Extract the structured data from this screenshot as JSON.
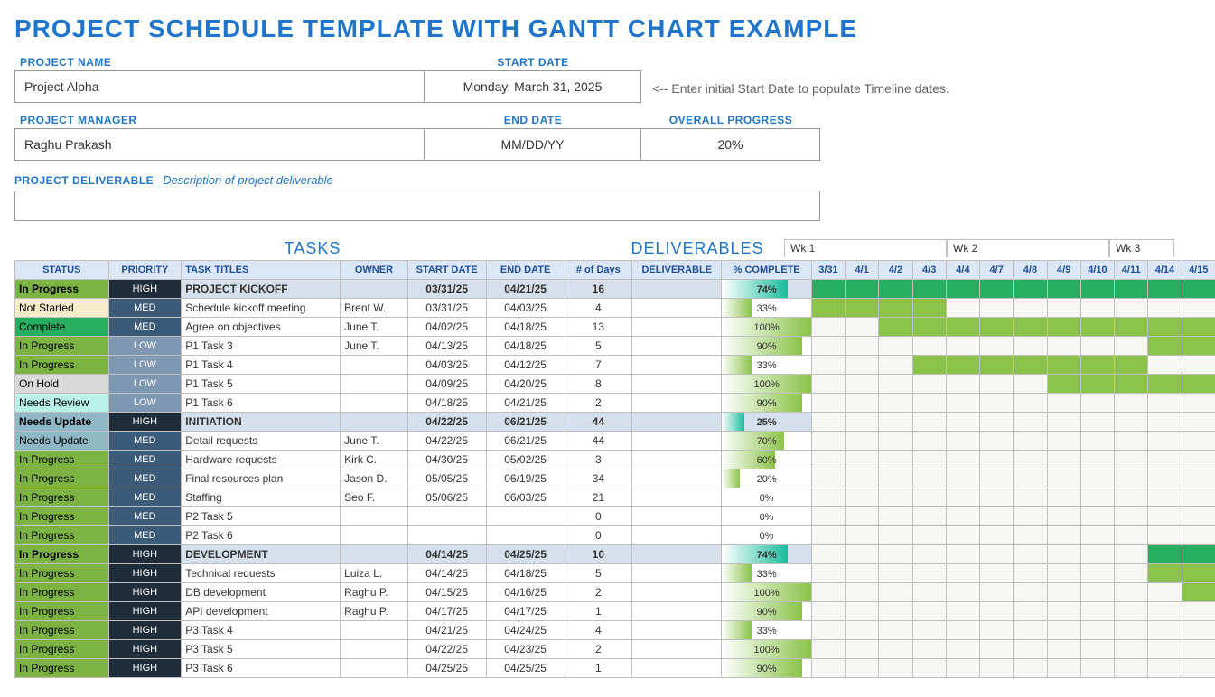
{
  "title": "PROJECT SCHEDULE TEMPLATE WITH GANTT CHART EXAMPLE",
  "labels": {
    "project_name": "PROJECT NAME",
    "start_date": "START DATE",
    "project_manager": "PROJECT MANAGER",
    "end_date": "END DATE",
    "overall_progress": "OVERALL PROGRESS",
    "deliverable": "PROJECT DELIVERABLE",
    "deliverable_desc": "Description of project deliverable",
    "hint": "<-- Enter initial Start Date to populate Timeline dates."
  },
  "header": {
    "project_name": "Project Alpha",
    "start_date": "Monday, March 31, 2025",
    "project_manager": "Raghu Prakash",
    "end_date": "MM/DD/YY",
    "overall_progress": "20%"
  },
  "sections": {
    "tasks": "TASKS",
    "deliverables": "DELIVERABLES"
  },
  "columns": {
    "status": "STATUS",
    "priority": "PRIORITY",
    "task": "TASK TITLES",
    "owner": "OWNER",
    "start": "START DATE",
    "end": "END DATE",
    "days": "# of Days",
    "deliverable": "DELIVERABLE",
    "pct": "% COMPLETE"
  },
  "weeks": [
    "Wk 1",
    "Wk 2",
    "Wk 3"
  ],
  "dates": [
    "3/31",
    "4/1",
    "4/2",
    "4/3",
    "4/4",
    "4/7",
    "4/8",
    "4/9",
    "4/10",
    "4/11",
    "4/14",
    "4/15"
  ],
  "colors": {
    "status": {
      "In Progress": "#7cb342",
      "Not Started": "#f5ecc9",
      "Complete": "#27ae60",
      "On Hold": "#d9d9d9",
      "Needs Review": "#b9f2e9",
      "Needs Update": "#8fb7c6"
    },
    "priority": {
      "HIGH": "#1f2d3a",
      "MED": "#3b5b78",
      "LOW": "#7e97b3"
    },
    "gantt_task": "#8bc34a",
    "gantt_phase": "#27ae60",
    "pct_task_from": "#ffffff",
    "pct_task_to": "#8bc34a",
    "pct_phase_from": "#ffffff",
    "pct_phase_to": "#1abc9c"
  },
  "rows": [
    {
      "phase": true,
      "status": "In Progress",
      "priority": "HIGH",
      "title": "PROJECT KICKOFF",
      "owner": "",
      "start": "03/31/25",
      "end": "04/21/25",
      "days": "16",
      "deliv": "",
      "pct": 74,
      "bar": [
        0,
        12
      ]
    },
    {
      "status": "Not Started",
      "priority": "MED",
      "title": "Schedule kickoff meeting",
      "owner": "Brent W.",
      "start": "03/31/25",
      "end": "04/03/25",
      "days": "4",
      "deliv": "",
      "pct": 33,
      "bar": [
        0,
        4
      ]
    },
    {
      "status": "Complete",
      "priority": "MED",
      "title": "Agree on objectives",
      "owner": "June T.",
      "start": "04/02/25",
      "end": "04/18/25",
      "days": "13",
      "deliv": "",
      "pct": 100,
      "bar": [
        2,
        12
      ]
    },
    {
      "status": "In Progress",
      "priority": "LOW",
      "title": "P1 Task 3",
      "owner": "June T.",
      "start": "04/13/25",
      "end": "04/18/25",
      "days": "5",
      "deliv": "",
      "pct": 90,
      "bar": [
        10,
        12
      ]
    },
    {
      "status": "In Progress",
      "priority": "LOW",
      "title": "P1 Task 4",
      "owner": "",
      "start": "04/03/25",
      "end": "04/12/25",
      "days": "7",
      "deliv": "",
      "pct": 33,
      "bar": [
        3,
        10
      ]
    },
    {
      "status": "On Hold",
      "priority": "LOW",
      "title": "P1 Task 5",
      "owner": "",
      "start": "04/09/25",
      "end": "04/20/25",
      "days": "8",
      "deliv": "",
      "pct": 100,
      "bar": [
        7,
        12
      ]
    },
    {
      "status": "Needs Review",
      "priority": "LOW",
      "title": "P1 Task 6",
      "owner": "",
      "start": "04/18/25",
      "end": "04/21/25",
      "days": "2",
      "deliv": "",
      "pct": 90,
      "bar": null
    },
    {
      "phase": true,
      "status": "Needs Update",
      "priority": "HIGH",
      "title": "INITIATION",
      "owner": "",
      "start": "04/22/25",
      "end": "06/21/25",
      "days": "44",
      "deliv": "",
      "pct": 25,
      "bar": null
    },
    {
      "status": "Needs Update",
      "priority": "MED",
      "title": "Detail requests",
      "owner": "June T.",
      "start": "04/22/25",
      "end": "06/21/25",
      "days": "44",
      "deliv": "",
      "pct": 70,
      "bar": null
    },
    {
      "status": "In Progress",
      "priority": "MED",
      "title": "Hardware requests",
      "owner": "Kirk C.",
      "start": "04/30/25",
      "end": "05/02/25",
      "days": "3",
      "deliv": "",
      "pct": 60,
      "bar": null
    },
    {
      "status": "In Progress",
      "priority": "MED",
      "title": "Final resources plan",
      "owner": "Jason D.",
      "start": "05/05/25",
      "end": "06/19/25",
      "days": "34",
      "deliv": "",
      "pct": 20,
      "bar": null
    },
    {
      "status": "In Progress",
      "priority": "MED",
      "title": "Staffing",
      "owner": "Seo F.",
      "start": "05/06/25",
      "end": "06/03/25",
      "days": "21",
      "deliv": "",
      "pct": 0,
      "bar": null
    },
    {
      "status": "In Progress",
      "priority": "MED",
      "title": "P2 Task 5",
      "owner": "",
      "start": "",
      "end": "",
      "days": "0",
      "deliv": "",
      "pct": 0,
      "bar": null
    },
    {
      "status": "In Progress",
      "priority": "MED",
      "title": "P2 Task 6",
      "owner": "",
      "start": "",
      "end": "",
      "days": "0",
      "deliv": "",
      "pct": 0,
      "bar": null
    },
    {
      "phase": true,
      "status": "In Progress",
      "priority": "HIGH",
      "title": "DEVELOPMENT",
      "owner": "",
      "start": "04/14/25",
      "end": "04/25/25",
      "days": "10",
      "deliv": "",
      "pct": 74,
      "bar": [
        10,
        12
      ]
    },
    {
      "status": "In Progress",
      "priority": "HIGH",
      "title": "Technical requests",
      "owner": "Luiza L.",
      "start": "04/14/25",
      "end": "04/18/25",
      "days": "5",
      "deliv": "",
      "pct": 33,
      "bar": [
        10,
        12
      ]
    },
    {
      "status": "In Progress",
      "priority": "HIGH",
      "title": "DB development",
      "owner": "Raghu P.",
      "start": "04/15/25",
      "end": "04/16/25",
      "days": "2",
      "deliv": "",
      "pct": 100,
      "bar": [
        11,
        12
      ]
    },
    {
      "status": "In Progress",
      "priority": "HIGH",
      "title": "API development",
      "owner": "Raghu P.",
      "start": "04/17/25",
      "end": "04/17/25",
      "days": "1",
      "deliv": "",
      "pct": 90,
      "bar": null
    },
    {
      "status": "In Progress",
      "priority": "HIGH",
      "title": "P3 Task 4",
      "owner": "",
      "start": "04/21/25",
      "end": "04/24/25",
      "days": "4",
      "deliv": "",
      "pct": 33,
      "bar": null
    },
    {
      "status": "In Progress",
      "priority": "HIGH",
      "title": "P3 Task 5",
      "owner": "",
      "start": "04/22/25",
      "end": "04/23/25",
      "days": "2",
      "deliv": "",
      "pct": 100,
      "bar": null
    },
    {
      "status": "In Progress",
      "priority": "HIGH",
      "title": "P3 Task 6",
      "owner": "",
      "start": "04/25/25",
      "end": "04/25/25",
      "days": "1",
      "deliv": "",
      "pct": 90,
      "bar": null
    }
  ]
}
